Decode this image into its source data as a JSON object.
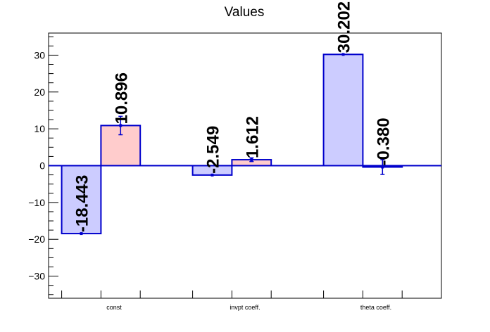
{
  "chart_data": {
    "type": "bar",
    "title": "Values",
    "xlabel": "",
    "ylabel": "",
    "ylim": [
      -36,
      36
    ],
    "yticks": [
      -30,
      -20,
      -10,
      0,
      10,
      20,
      30
    ],
    "categories": [
      "const",
      "invpt coeff.",
      "theta coeff."
    ],
    "grid": false,
    "legend": "none",
    "series": [
      {
        "values": [
          -18.443,
          -2.549,
          30.202
        ],
        "labels": [
          "-18.443",
          "-2.549",
          "30.202"
        ],
        "color": "#ccccff",
        "edge_color": "#0000cc",
        "errors": [
          0,
          0,
          0
        ]
      },
      {
        "values": [
          10.896,
          1.612,
          -0.38
        ],
        "labels": [
          "10.896",
          "1.612",
          "-0.380"
        ],
        "color": "#ffcccc",
        "edge_color": "#0000cc",
        "errors": [
          2.5,
          0.5,
          2.0
        ]
      }
    ],
    "zero_line_color": "#0000cc"
  }
}
